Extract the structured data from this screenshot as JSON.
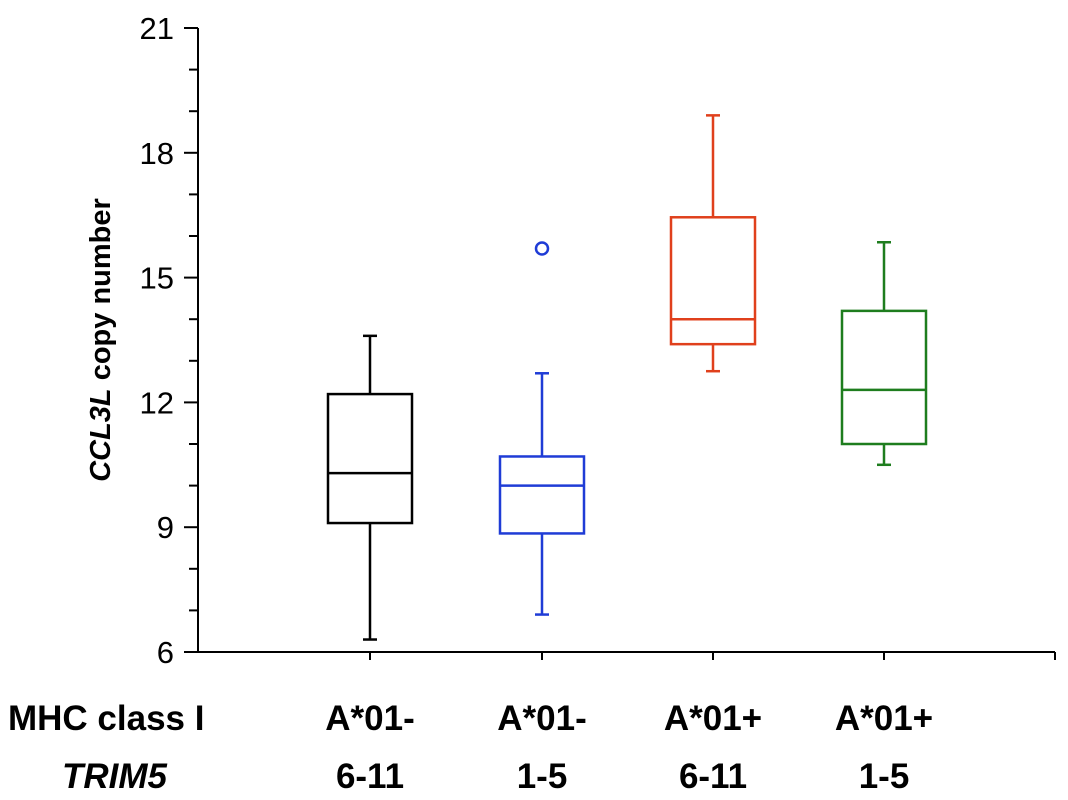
{
  "chart_data": {
    "type": "box",
    "ylabel_italic": "CCL3L",
    "ylabel_rest": " copy number",
    "ylim": [
      6,
      21
    ],
    "yticks": [
      "6",
      "9",
      "12",
      "15",
      "18",
      "21"
    ],
    "grid": false,
    "row_labels": [
      "MHC class I",
      "TRIM5"
    ],
    "categories": [
      {
        "mhc": "A*01-",
        "trim5": "6-11",
        "color": "#000000",
        "min": 6.3,
        "q1": 9.1,
        "median": 10.3,
        "q3": 12.2,
        "max": 13.6,
        "outliers": []
      },
      {
        "mhc": "A*01-",
        "trim5": "1-5",
        "color": "#1f3cd6",
        "min": 6.9,
        "q1": 8.85,
        "median": 10.0,
        "q3": 10.7,
        "max": 12.7,
        "outliers": [
          15.7
        ]
      },
      {
        "mhc": "A*01+",
        "trim5": "6-11",
        "color": "#e0401c",
        "min": 12.75,
        "q1": 13.4,
        "median": 14.0,
        "q3": 16.45,
        "max": 18.9,
        "outliers": []
      },
      {
        "mhc": "A*01+",
        "trim5": "1-5",
        "color": "#1e7d1e",
        "min": 10.5,
        "q1": 11.0,
        "median": 12.3,
        "q3": 14.2,
        "max": 15.85,
        "outliers": []
      }
    ]
  }
}
